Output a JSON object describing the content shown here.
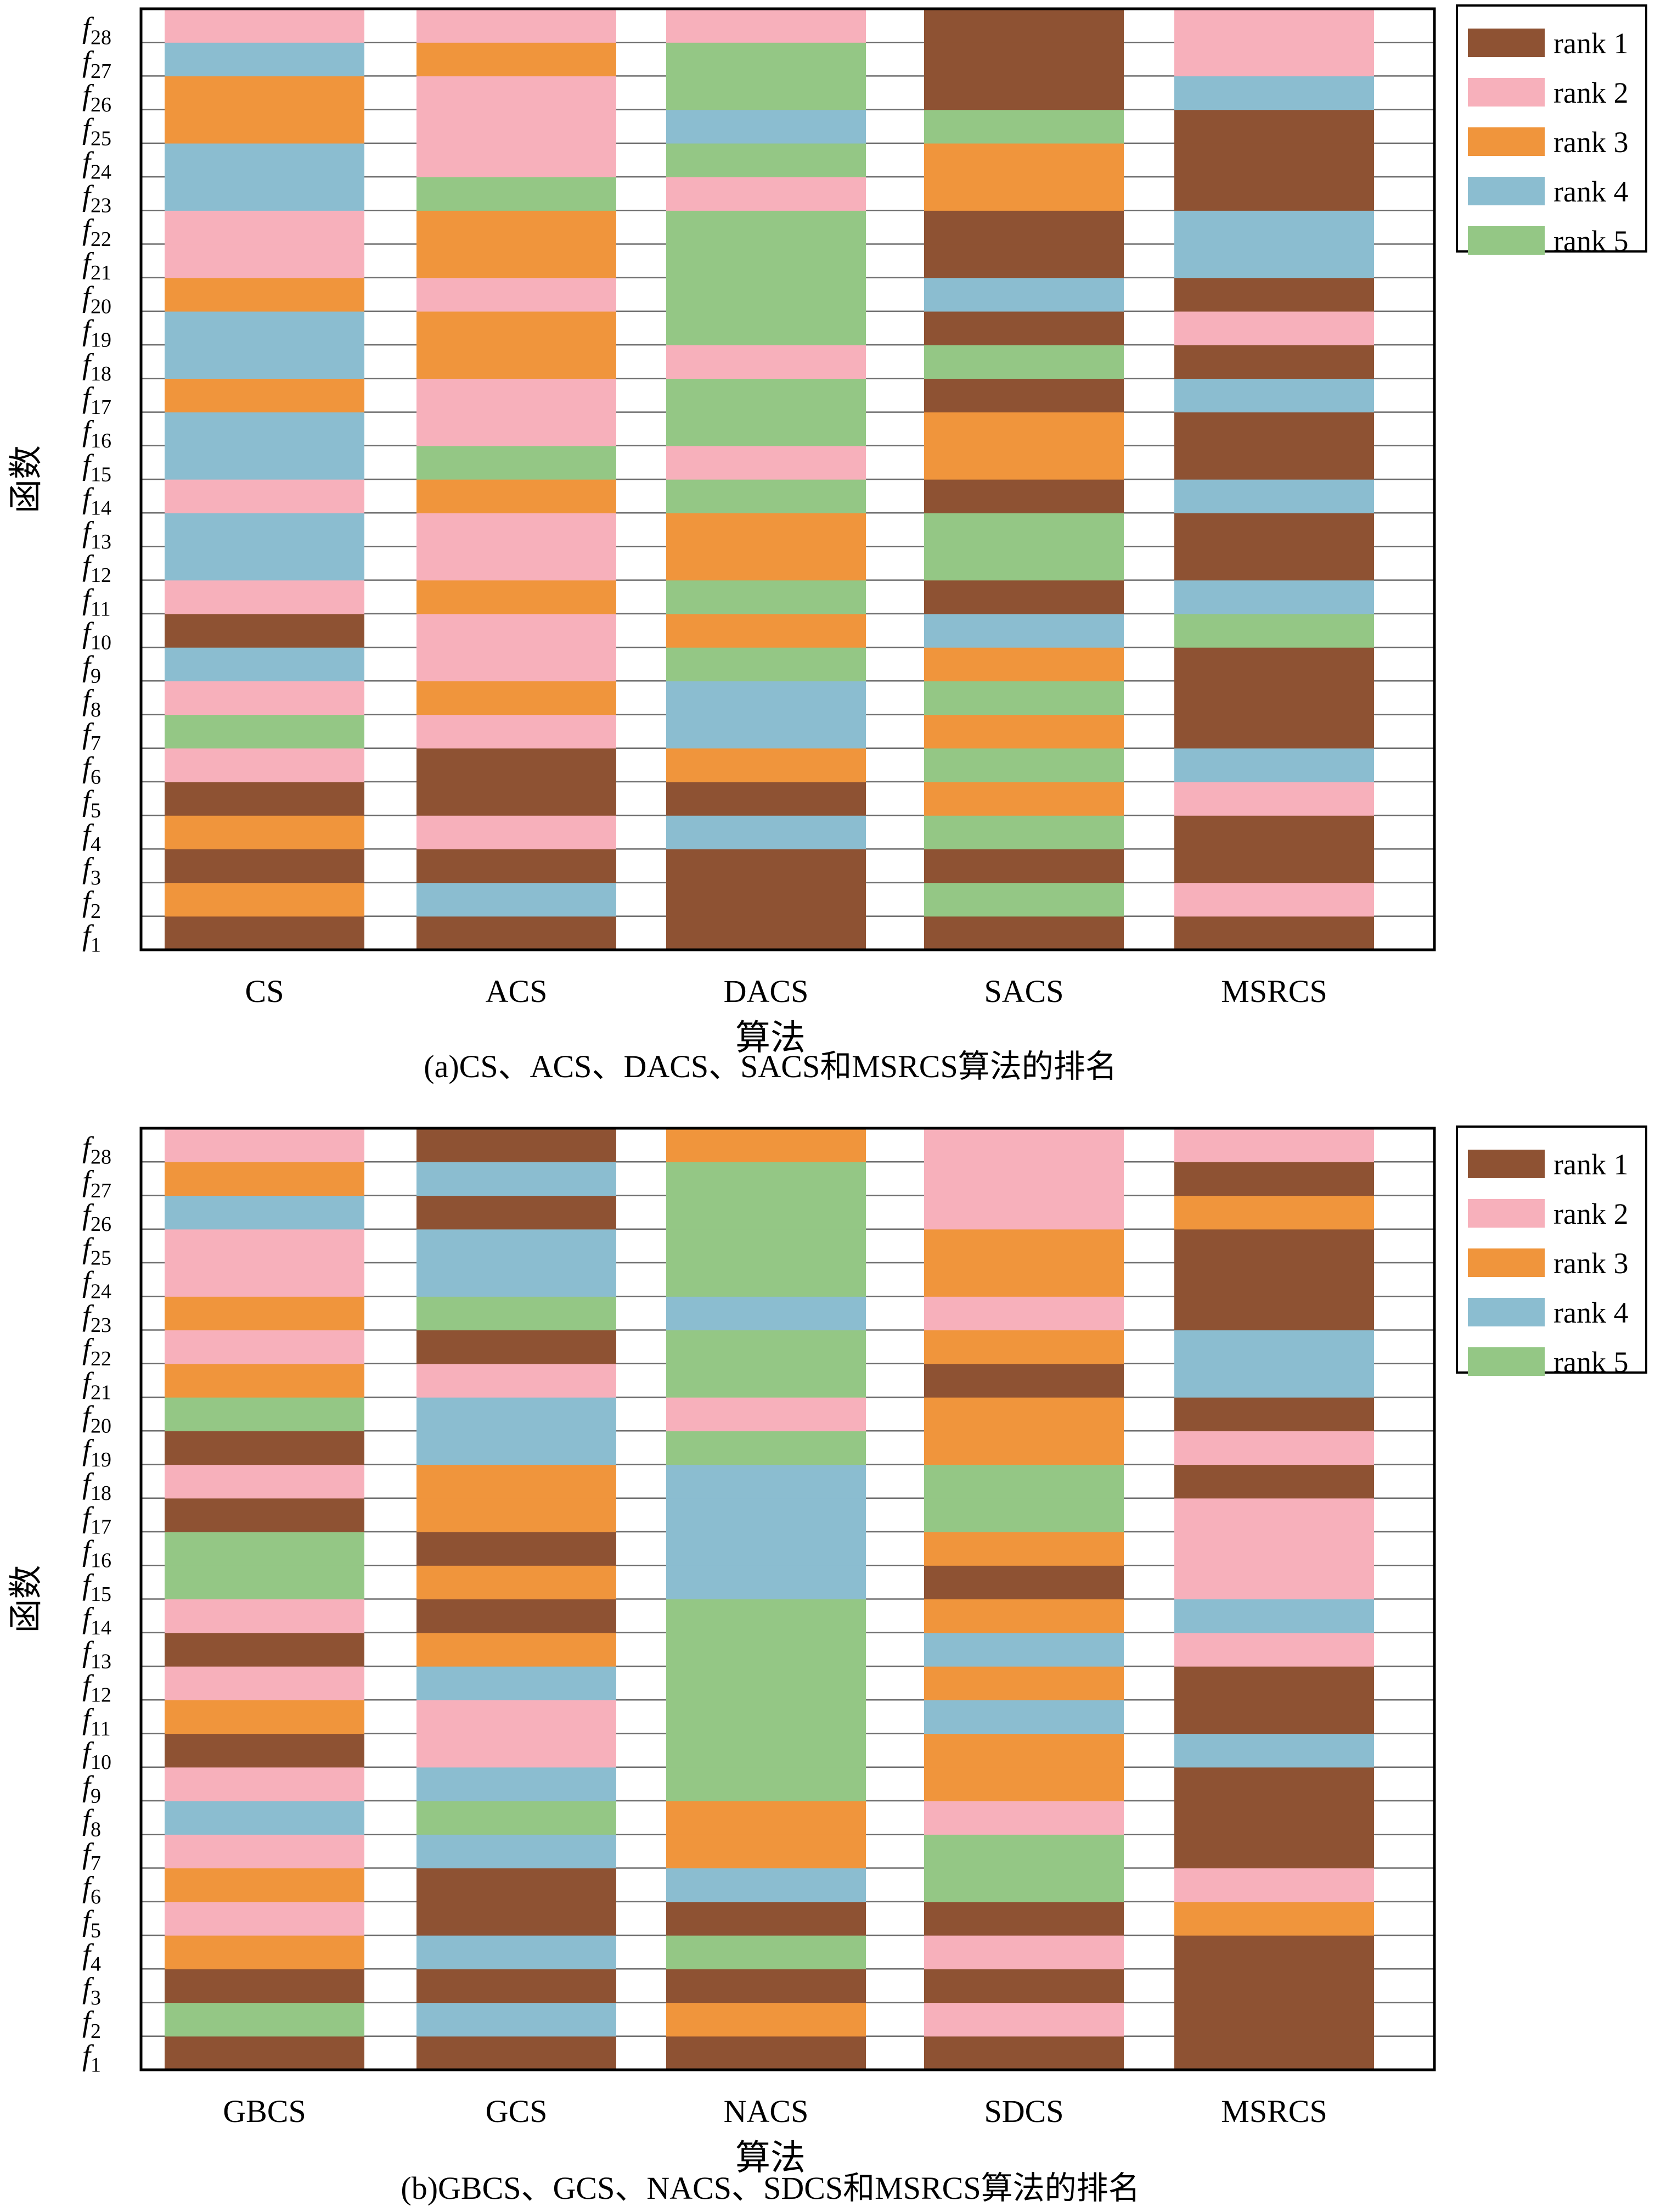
{
  "colors": {
    "rank_1": "#8e5233",
    "rank_2": "#f7b0bb",
    "rank_3": "#f0953c",
    "rank_4": "#8bbdd0",
    "rank_5": "#94c785"
  },
  "legend": [
    "rank 1",
    "rank 2",
    "rank 3",
    "rank 4",
    "rank 5"
  ],
  "function_labels": [
    "f1",
    "f2",
    "f3",
    "f4",
    "f5",
    "f6",
    "f7",
    "f8",
    "f9",
    "f10",
    "f11",
    "f12",
    "f13",
    "f14",
    "f15",
    "f16",
    "f17",
    "f18",
    "f19",
    "f20",
    "f21",
    "f22",
    "f23",
    "f24",
    "f25",
    "f26",
    "f27",
    "f28"
  ],
  "chart_data": [
    {
      "type": "heatmap",
      "caption": "(a)CS、ACS、DACS、SACS和MSRCS算法的排名",
      "xlabel": "算法",
      "ylabel": "函数",
      "legend_placement": "top-right",
      "categories": [
        "CS",
        "ACS",
        "DACS",
        "SACS",
        "MSRCS"
      ],
      "ranks": [
        [
          1,
          3,
          1,
          3,
          1,
          2,
          5,
          2,
          4,
          1,
          2,
          4,
          4,
          2,
          4,
          4,
          3,
          4,
          4,
          3,
          2,
          2,
          4,
          4,
          3,
          3,
          4,
          2
        ],
        [
          1,
          4,
          1,
          2,
          1,
          1,
          2,
          3,
          2,
          2,
          3,
          2,
          2,
          3,
          5,
          2,
          2,
          3,
          3,
          2,
          3,
          3,
          5,
          2,
          2,
          2,
          3,
          2
        ],
        [
          1,
          1,
          1,
          4,
          1,
          3,
          4,
          4,
          5,
          3,
          5,
          3,
          3,
          5,
          2,
          5,
          5,
          2,
          5,
          5,
          5,
          5,
          2,
          5,
          4,
          5,
          5,
          2
        ],
        [
          1,
          5,
          1,
          5,
          3,
          5,
          3,
          5,
          3,
          4,
          1,
          5,
          5,
          1,
          3,
          3,
          1,
          5,
          1,
          4,
          1,
          1,
          3,
          3,
          5,
          1,
          1,
          1
        ],
        [
          1,
          2,
          1,
          1,
          2,
          4,
          1,
          1,
          1,
          5,
          4,
          1,
          1,
          4,
          1,
          1,
          4,
          1,
          2,
          1,
          4,
          4,
          1,
          1,
          1,
          4,
          2,
          2
        ]
      ]
    },
    {
      "type": "heatmap",
      "caption": "(b)GBCS、GCS、NACS、SDCS和MSRCS算法的排名",
      "xlabel": "算法",
      "ylabel": "函数",
      "legend_placement": "top-right",
      "categories": [
        "GBCS",
        "GCS",
        "NACS",
        "SDCS",
        "MSRCS"
      ],
      "ranks": [
        [
          1,
          5,
          1,
          3,
          2,
          3,
          2,
          4,
          2,
          1,
          3,
          2,
          1,
          2,
          5,
          5,
          1,
          2,
          1,
          5,
          3,
          2,
          3,
          2,
          2,
          4,
          3,
          2
        ],
        [
          1,
          4,
          1,
          4,
          1,
          1,
          4,
          5,
          4,
          2,
          2,
          4,
          3,
          1,
          3,
          1,
          3,
          3,
          4,
          4,
          2,
          1,
          5,
          4,
          4,
          1,
          4,
          1
        ],
        [
          1,
          3,
          1,
          5,
          1,
          4,
          3,
          3,
          5,
          5,
          5,
          5,
          5,
          5,
          4,
          4,
          4,
          4,
          5,
          2,
          5,
          5,
          4,
          5,
          5,
          5,
          5,
          3
        ],
        [
          1,
          2,
          1,
          2,
          1,
          5,
          5,
          2,
          3,
          3,
          4,
          3,
          4,
          3,
          1,
          3,
          5,
          5,
          3,
          3,
          1,
          3,
          2,
          3,
          3,
          2,
          2,
          2
        ],
        [
          1,
          1,
          1,
          1,
          3,
          2,
          1,
          1,
          1,
          4,
          1,
          1,
          2,
          4,
          2,
          2,
          2,
          1,
          2,
          1,
          4,
          4,
          1,
          1,
          1,
          3,
          1,
          2
        ]
      ]
    }
  ]
}
